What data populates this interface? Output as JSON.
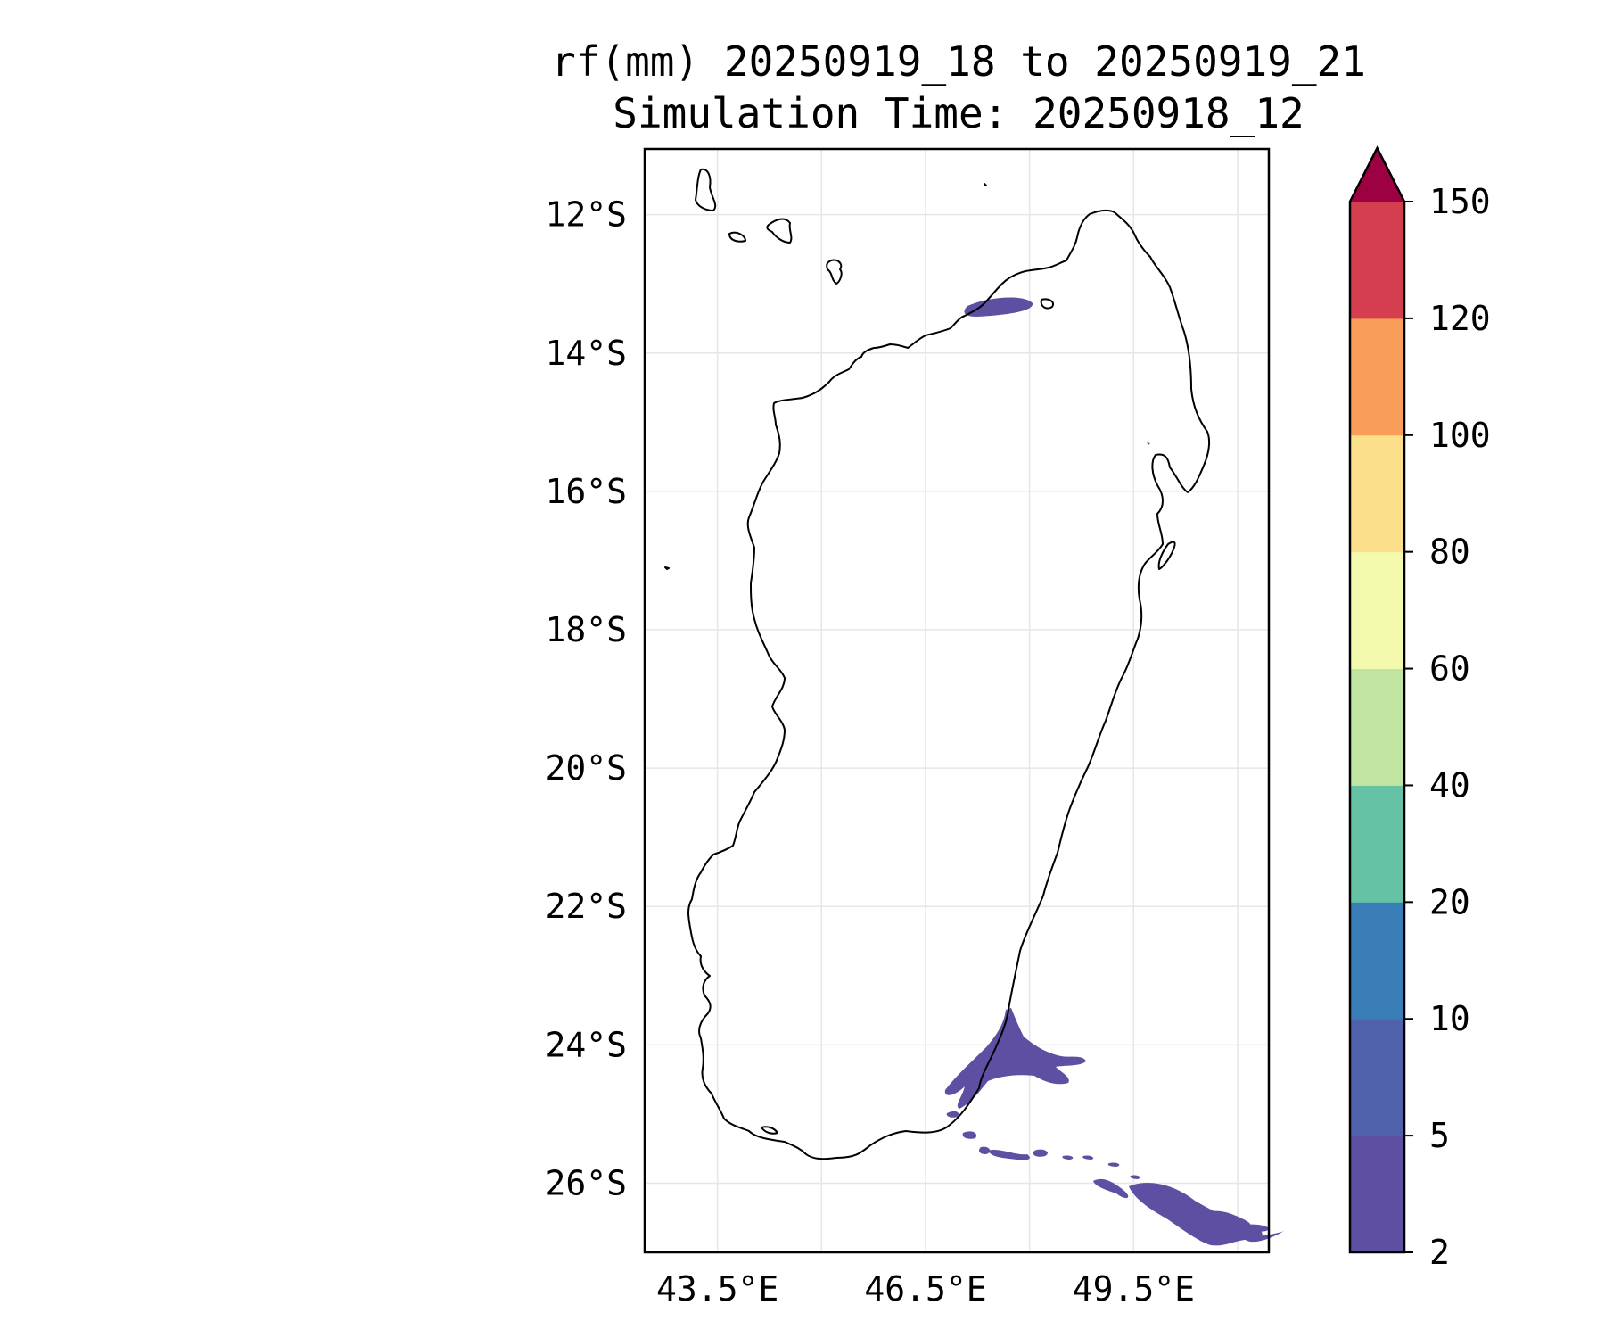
{
  "title": {
    "line1": "rf(mm) 20250919_18 to 20250919_21",
    "line2": "Simulation Time: 20250918_12"
  },
  "map": {
    "lat_ticks": [
      "12°S",
      "14°S",
      "16°S",
      "18°S",
      "20°S",
      "22°S",
      "24°S",
      "26°S"
    ],
    "lon_ticks": [
      "43.5°E",
      "46.5°E",
      "49.5°E"
    ],
    "extent": {
      "lon_min": 42.45,
      "lon_max": 51.45,
      "lat_min": -27.0,
      "lat_max": -11.05
    },
    "gridlines": true
  },
  "colorbar": {
    "levels": [
      "2",
      "5",
      "10",
      "20",
      "40",
      "60",
      "80",
      "100",
      "120",
      "150"
    ],
    "colors": [
      "#5e4fa2",
      "#4f61aa",
      "#3a7eb8",
      "#66c2a5",
      "#bfe5a0",
      "#f3faad",
      "#fcdf8b",
      "#f99e59",
      "#d53e4f"
    ],
    "extend_color": "#9e0142",
    "extend": "max"
  },
  "rain_color": "#5e4fa2"
}
